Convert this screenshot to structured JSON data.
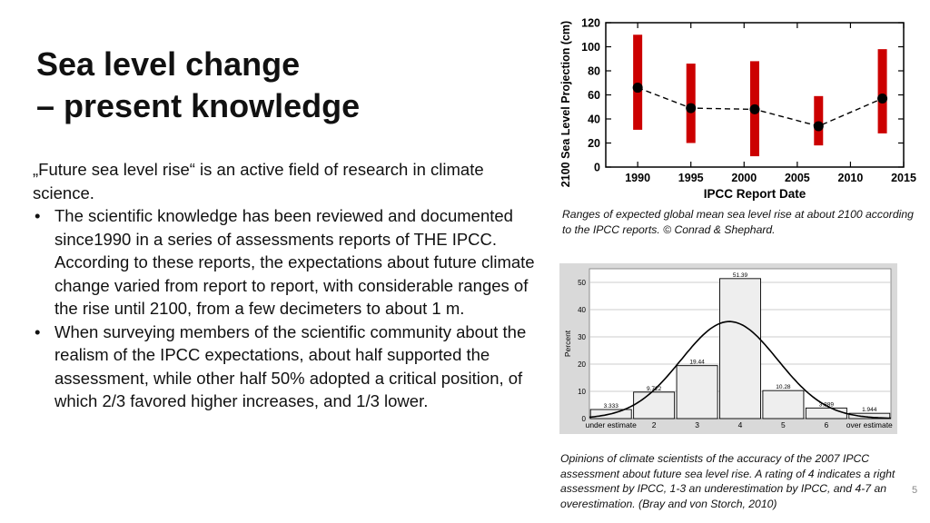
{
  "slide": {
    "title_line1": "Sea level change",
    "title_line2": "– present knowledge",
    "intro": "„Future sea level rise“ is an active field of research in climate science.",
    "bullets": [
      "The scientific knowledge has been reviewed and documented since1990 in a series of assessments reports of THE IPCC. According to these reports, the expectations about future climate change varied from report to report, with considerable ranges of the rise until 2100, from a few decimeters to about 1 m.",
      "When surveying members of the scientific community about the realism of the IPCC expectations, about half supported the assessment, while other half 50% adopted a critical position, of which 2/3 favored higher increases, and 1/3 lower."
    ],
    "caption1": "Ranges of expected  global mean sea level rise at  about 2100 according to the IPCC reports. © Conrad & Shephard.",
    "caption2": "Opinions of climate scientists of the accuracy of the 2007 IPCC assessment about  future sea level rise.  A rating of 4 indicates a right assessment by IPCC, 1-3  an underestimation by IPCC, and 4-7 an overestimation.  (Bray and von Storch, 2010)",
    "page_number": "5"
  },
  "chart_data": [
    {
      "type": "line",
      "xlabel": "IPCC Report Date",
      "ylabel": "2100 Sea Level Projection (cm)",
      "xlim": [
        1987,
        2015
      ],
      "ylim": [
        0,
        120
      ],
      "x_ticks": [
        1990,
        1995,
        2000,
        2005,
        2010,
        2015
      ],
      "y_ticks": [
        0,
        20,
        40,
        60,
        80,
        100,
        120
      ],
      "x": [
        1990,
        1995,
        2001,
        2007,
        2013
      ],
      "values": [
        66,
        49,
        48,
        34,
        57
      ],
      "ranges": [
        [
          31,
          110
        ],
        [
          20,
          86
        ],
        [
          9,
          88
        ],
        [
          18,
          59
        ],
        [
          28,
          98
        ]
      ],
      "range_color": "#cc0000",
      "line_color": "#000000",
      "line_style": "dashed",
      "grid": false
    },
    {
      "type": "bar",
      "ylabel": "Percent",
      "categories": [
        "under estimate",
        "2",
        "3",
        "4",
        "5",
        "6",
        "over estimate"
      ],
      "values": [
        3.333,
        9.722,
        19.44,
        51.39,
        10.28,
        3.889,
        1.944
      ],
      "value_labels": [
        "3.333",
        "9.722",
        "19.44",
        "51.39",
        "10.28",
        "3.889",
        "1.944"
      ],
      "ylim": [
        0,
        55
      ],
      "y_ticks": [
        0,
        10,
        20,
        30,
        40,
        50
      ],
      "curve": "normal-fit",
      "grid": true,
      "bar_fill": "#eeeeee",
      "background": "#d9d9d9"
    }
  ]
}
